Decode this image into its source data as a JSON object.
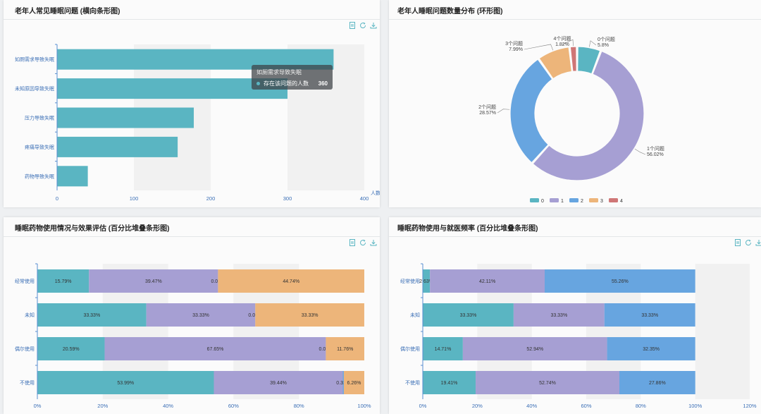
{
  "panels": {
    "p1": {
      "title": "老年人常见睡眠问题 (横向条形图)"
    },
    "p2": {
      "title": "老年人睡眠问题数量分布 (环形图)"
    },
    "p3": {
      "title": "睡眠药物使用情况与效果评估 (百分比堆叠条形图)"
    },
    "p4": {
      "title": "睡眠药物使用与就医频率 (百分比堆叠条形图)"
    }
  },
  "toolbox_icons": [
    "data-view-icon",
    "refresh-icon",
    "save-image-icon"
  ],
  "tooltip": {
    "title": "如厕需求导致失眠",
    "series_name": "存在该问题的人数",
    "value": "360"
  },
  "colors": {
    "teal": "#5ab5c2",
    "purple": "#a69fd3",
    "blue": "#67a5e0",
    "orange": "#edb57a",
    "red": "#cf7676"
  },
  "chart_data": [
    {
      "type": "bar",
      "orientation": "horizontal",
      "title": "老年人常见睡眠问题 (横向条形图)",
      "categories": [
        "如厕需求导致失眠",
        "未知原因导致失眠",
        "压力导致失眠",
        "疼痛导致失眠",
        "药物导致失眠"
      ],
      "values": [
        360,
        300,
        178,
        157,
        40
      ],
      "series_name": "存在该问题的人数",
      "xlabel": "人数",
      "xlim": [
        0,
        400
      ],
      "xticks": [
        "0",
        "100",
        "200",
        "300",
        "400"
      ]
    },
    {
      "type": "pie",
      "donut": true,
      "title": "老年人睡眠问题数量分布 (环形图)",
      "slices": [
        {
          "key": "0",
          "label": "0个问题",
          "pct": "5.8%",
          "value": 5.8
        },
        {
          "key": "1",
          "label": "1个问题",
          "pct": "56.02%",
          "value": 56.02
        },
        {
          "key": "2",
          "label": "2个问题",
          "pct": "28.57%",
          "value": 28.57
        },
        {
          "key": "3",
          "label": "3个问题",
          "pct": "7.99%",
          "value": 7.99
        },
        {
          "key": "4",
          "label": "4个问题",
          "pct": "1.82%",
          "value": 1.82
        }
      ],
      "legend": [
        "0",
        "1",
        "2",
        "3",
        "4"
      ],
      "legend_position": "bottom"
    },
    {
      "type": "bar",
      "stacked": true,
      "title": "睡眠药物使用情况与效果评估 (百分比堆叠条形图)",
      "categories": [
        "经常使用",
        "未知",
        "偶尔使用",
        "不使用"
      ],
      "series": [
        {
          "values": [
            15.79,
            33.33,
            20.59,
            53.99
          ],
          "labels": [
            "15.79%",
            "33.33%",
            "20.59%",
            "53.99%"
          ]
        },
        {
          "values": [
            39.47,
            33.33,
            67.65,
            39.44
          ],
          "labels": [
            "39.47%",
            "33.33%",
            "67.65%",
            "39.44%"
          ]
        },
        {
          "values": [
            0,
            0,
            0,
            0.31
          ],
          "labels": [
            "0.00%",
            "0.00%",
            "0.00%",
            "0.31%"
          ]
        },
        {
          "values": [
            44.74,
            33.33,
            11.76,
            6.26
          ],
          "labels": [
            "44.74%",
            "33.33%",
            "11.76%",
            "6.26%"
          ]
        }
      ],
      "xlim": [
        0,
        100
      ],
      "xticks": [
        "0%",
        "20%",
        "40%",
        "60%",
        "80%",
        "100%"
      ]
    },
    {
      "type": "bar",
      "stacked": true,
      "title": "睡眠药物使用与就医频率 (百分比堆叠条形图)",
      "categories": [
        "经常使用",
        "未知",
        "偶尔使用",
        "不使用"
      ],
      "series": [
        {
          "values": [
            2.63,
            33.33,
            14.71,
            19.41
          ],
          "labels": [
            "2.63%",
            "33.33%",
            "14.71%",
            "19.41%"
          ]
        },
        {
          "values": [
            42.11,
            33.33,
            52.94,
            52.74
          ],
          "labels": [
            "42.11%",
            "33.33%",
            "52.94%",
            "52.74%"
          ]
        },
        {
          "values": [
            55.26,
            33.33,
            32.35,
            27.86
          ],
          "labels": [
            "55.26%",
            "33.33%",
            "32.35%",
            "27.86%"
          ]
        }
      ],
      "xlim": [
        0,
        120
      ],
      "xticks": [
        "0%",
        "20%",
        "40%",
        "60%",
        "80%",
        "100%",
        "120%"
      ]
    }
  ]
}
